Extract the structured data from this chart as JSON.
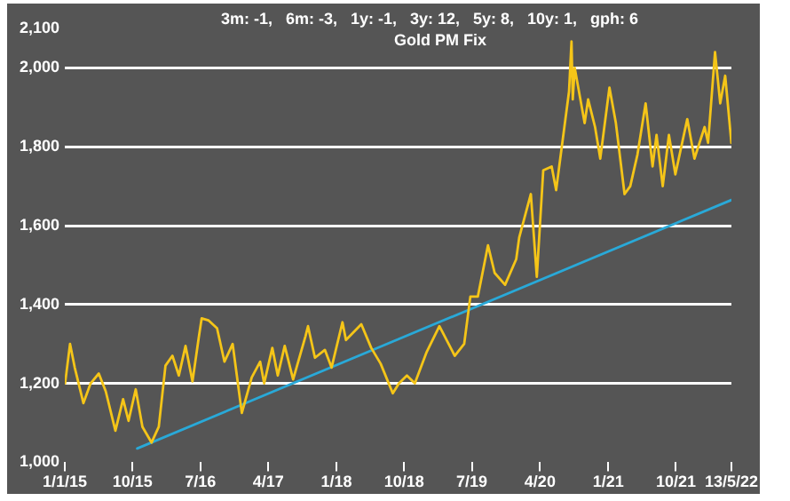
{
  "chart_data": {
    "type": "line",
    "title": "Gold PM Fix",
    "subtitle": "3m: -1,   6m: -3,   1y: -1,   3y: 12,   5y: 8,   10y: 1,   gph: 6",
    "xlim": [
      "2015-01-01",
      "2022-05-13"
    ],
    "xticks": [
      {
        "value": "2015-01-01",
        "label": "1/1/15"
      },
      {
        "value": "2015-10-01",
        "label": "10/15"
      },
      {
        "value": "2016-07-01",
        "label": "7/16"
      },
      {
        "value": "2017-04-01",
        "label": "4/17"
      },
      {
        "value": "2018-01-01",
        "label": "1/18"
      },
      {
        "value": "2018-10-01",
        "label": "10/18"
      },
      {
        "value": "2019-07-01",
        "label": "7/19"
      },
      {
        "value": "2020-04-01",
        "label": "4/20"
      },
      {
        "value": "2021-01-01",
        "label": "1/21"
      },
      {
        "value": "2021-10-01",
        "label": "10/21"
      },
      {
        "value": "2022-05-13",
        "label": "13/5/22"
      }
    ],
    "ylim": [
      1000,
      2100
    ],
    "yticks": [
      {
        "value": 1000,
        "label": "1,000"
      },
      {
        "value": 1200,
        "label": "1,200"
      },
      {
        "value": 1400,
        "label": "1,400"
      },
      {
        "value": 1600,
        "label": "1,600"
      },
      {
        "value": 1800,
        "label": "1,800"
      },
      {
        "value": 2000,
        "label": "2,000"
      },
      {
        "value": 2100,
        "label": "2,100"
      }
    ],
    "grid": "y",
    "legend": false,
    "marker": "none",
    "line_style": "solid",
    "series": [
      {
        "color": "#f5c518",
        "x": [
          "2015-01-02",
          "2015-01-22",
          "2015-02-10",
          "2015-03-17",
          "2015-04-15",
          "2015-05-18",
          "2015-06-15",
          "2015-07-24",
          "2015-08-24",
          "2015-09-15",
          "2015-10-14",
          "2015-11-10",
          "2015-12-17",
          "2016-01-15",
          "2016-02-11",
          "2016-03-10",
          "2016-04-05",
          "2016-05-02",
          "2016-05-30",
          "2016-06-24",
          "2016-07-06",
          "2016-08-02",
          "2016-09-06",
          "2016-10-06",
          "2016-11-08",
          "2016-12-15",
          "2017-01-24",
          "2017-02-27",
          "2017-03-15",
          "2017-04-17",
          "2017-05-09",
          "2017-06-06",
          "2017-07-10",
          "2017-08-29",
          "2017-09-08",
          "2017-10-06",
          "2017-11-15",
          "2017-12-12",
          "2018-01-25",
          "2018-02-08",
          "2018-04-11",
          "2018-05-21",
          "2018-06-28",
          "2018-08-16",
          "2018-09-10",
          "2018-10-12",
          "2018-11-13",
          "2018-12-31",
          "2019-02-20",
          "2019-04-23",
          "2019-05-31",
          "2019-06-25",
          "2019-07-25",
          "2019-09-04",
          "2019-10-01",
          "2019-11-12",
          "2019-12-27",
          "2020-01-08",
          "2020-02-24",
          "2020-03-19",
          "2020-04-14",
          "2020-05-18",
          "2020-06-05",
          "2020-07-27",
          "2020-08-06",
          "2020-08-11",
          "2020-08-19",
          "2020-09-28",
          "2020-10-12",
          "2020-11-09",
          "2020-11-30",
          "2021-01-06",
          "2021-02-01",
          "2021-03-08",
          "2021-03-31",
          "2021-04-29",
          "2021-06-01",
          "2021-06-29",
          "2021-07-15",
          "2021-08-09",
          "2021-09-03",
          "2021-09-29",
          "2021-11-16",
          "2021-12-15",
          "2022-01-25",
          "2022-02-08",
          "2022-03-08",
          "2022-03-29",
          "2022-04-18",
          "2022-05-13"
        ],
        "values": [
          1200,
          1300,
          1240,
          1150,
          1200,
          1225,
          1180,
          1080,
          1160,
          1105,
          1185,
          1090,
          1050,
          1090,
          1245,
          1270,
          1220,
          1295,
          1205,
          1315,
          1365,
          1360,
          1340,
          1255,
          1300,
          1125,
          1215,
          1255,
          1200,
          1290,
          1220,
          1295,
          1210,
          1320,
          1345,
          1265,
          1285,
          1240,
          1355,
          1310,
          1350,
          1290,
          1250,
          1175,
          1200,
          1220,
          1200,
          1280,
          1345,
          1270,
          1300,
          1420,
          1420,
          1550,
          1480,
          1450,
          1515,
          1570,
          1680,
          1470,
          1740,
          1750,
          1690,
          1940,
          2067,
          1920,
          2000,
          1860,
          1920,
          1850,
          1770,
          1950,
          1860,
          1680,
          1700,
          1780,
          1910,
          1750,
          1830,
          1700,
          1830,
          1730,
          1870,
          1770,
          1850,
          1810,
          2040,
          1910,
          1980,
          1810
        ]
      },
      {
        "type": "line",
        "color": "#29a9d8",
        "x": [
          "2015-10-20",
          "2022-05-13"
        ],
        "values": [
          1035,
          1665
        ]
      }
    ]
  }
}
